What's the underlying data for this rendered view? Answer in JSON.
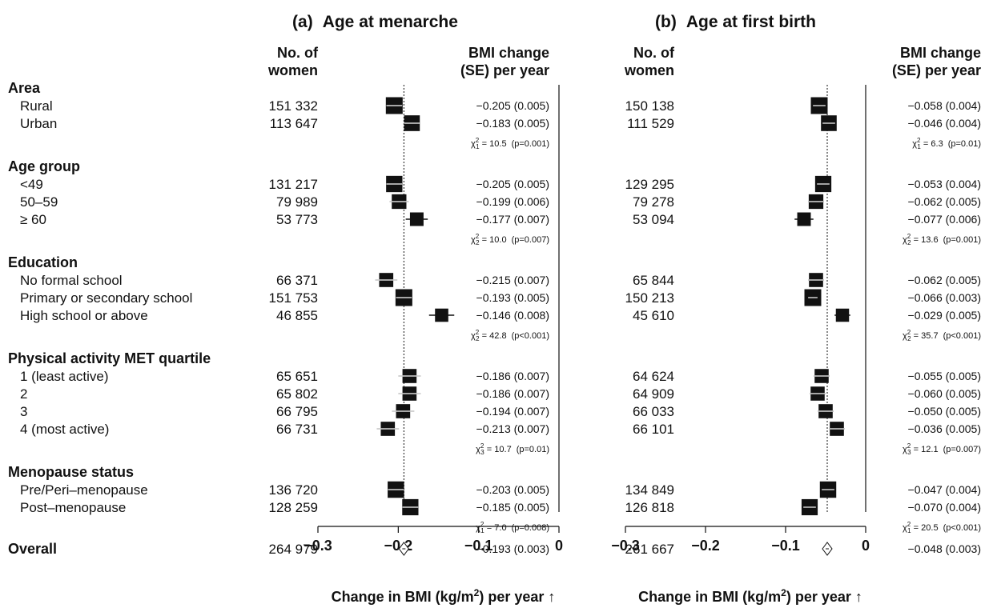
{
  "figure": {
    "panels": [
      {
        "letter": "a",
        "title": "Age at menarche",
        "n_header": [
          "No. of",
          "women"
        ],
        "est_header": [
          "BMI change",
          "(SE) per year"
        ],
        "x_label": "Change in BMI (kg/m",
        "x_label_sup": "2",
        "x_label_end": ") per year ↑"
      },
      {
        "letter": "b",
        "title": "Age at first birth",
        "n_header": [
          "No. of",
          "women"
        ],
        "est_header": [
          "BMI change",
          "(SE) per year"
        ],
        "x_label": "Change in BMI (kg/m",
        "x_label_sup": "2",
        "x_label_end": ") per year ↑"
      }
    ]
  },
  "chart_data": [
    {
      "type": "forest",
      "title": "Age at menarche",
      "xlabel": "Change in BMI (kg/m2) per year",
      "xlim": [
        -0.3,
        0
      ],
      "xticks": [
        "−0.3",
        "−0.2",
        "−0.1",
        "0"
      ],
      "reference_line": -0.193,
      "groups": [
        {
          "name": "Area",
          "rows": [
            {
              "label": "Rural",
              "n": "151 332",
              "estimate": -0.205,
              "se": 0.005,
              "text": "−0.205 (0.005)"
            },
            {
              "label": "Urban",
              "n": "113 647",
              "estimate": -0.183,
              "se": 0.005,
              "text": "−0.183 (0.005)"
            }
          ],
          "test": {
            "df": "1",
            "value": "10.5",
            "p": "(p=0.001)"
          }
        },
        {
          "name": "Age group",
          "rows": [
            {
              "label": "<49",
              "n": "131 217",
              "estimate": -0.205,
              "se": 0.005,
              "text": "−0.205 (0.005)"
            },
            {
              "label": "50–59",
              "n": "79 989",
              "estimate": -0.199,
              "se": 0.006,
              "text": "−0.199 (0.006)"
            },
            {
              "label": "≥ 60",
              "n": "53 773",
              "estimate": -0.177,
              "se": 0.007,
              "text": "−0.177 (0.007)"
            }
          ],
          "test": {
            "df": "2",
            "value": "10.0",
            "p": "(p=0.007)"
          }
        },
        {
          "name": "Education",
          "rows": [
            {
              "label": "No formal school",
              "n": "66 371",
              "estimate": -0.215,
              "se": 0.007,
              "text": "−0.215 (0.007)"
            },
            {
              "label": "Primary or secondary school",
              "n": "151 753",
              "estimate": -0.193,
              "se": 0.005,
              "text": "−0.193 (0.005)"
            },
            {
              "label": "High school or above",
              "n": "46 855",
              "estimate": -0.146,
              "se": 0.008,
              "text": "−0.146 (0.008)"
            }
          ],
          "test": {
            "df": "2",
            "value": "42.8",
            "p": "(p<0.001)"
          }
        },
        {
          "name": "Physical activity MET quartile",
          "rows": [
            {
              "label": "1 (least active)",
              "n": "65 651",
              "estimate": -0.186,
              "se": 0.007,
              "text": "−0.186 (0.007)"
            },
            {
              "label": "2",
              "n": "65 802",
              "estimate": -0.186,
              "se": 0.007,
              "text": "−0.186 (0.007)"
            },
            {
              "label": "3",
              "n": "66 795",
              "estimate": -0.194,
              "se": 0.007,
              "text": "−0.194 (0.007)"
            },
            {
              "label": "4 (most active)",
              "n": "66 731",
              "estimate": -0.213,
              "se": 0.007,
              "text": "−0.213 (0.007)"
            }
          ],
          "test": {
            "df": "3",
            "value": "10.7",
            "p": "(p=0.01)"
          }
        },
        {
          "name": "Menopause status",
          "rows": [
            {
              "label": "Pre/Peri–menopause",
              "n": "136 720",
              "estimate": -0.203,
              "se": 0.005,
              "text": "−0.203 (0.005)"
            },
            {
              "label": "Post–menopause",
              "n": "128 259",
              "estimate": -0.185,
              "se": 0.005,
              "text": "−0.185 (0.005)"
            }
          ],
          "test": {
            "df": "1",
            "value": "7.0",
            "p": "(p=0.008)"
          }
        }
      ],
      "overall": {
        "label": "Overall",
        "n": "264 979",
        "estimate": -0.193,
        "se": 0.003,
        "text": "−0.193 (0.003)"
      }
    },
    {
      "type": "forest",
      "title": "Age at first birth",
      "xlabel": "Change in BMI (kg/m2) per year",
      "xlim": [
        -0.3,
        0
      ],
      "xticks": [
        "−0.3",
        "−0.2",
        "−0.1",
        "0"
      ],
      "reference_line": -0.048,
      "groups": [
        {
          "name": "Area",
          "rows": [
            {
              "label": "Rural",
              "n": "150 138",
              "estimate": -0.058,
              "se": 0.004,
              "text": "−0.058 (0.004)"
            },
            {
              "label": "Urban",
              "n": "111 529",
              "estimate": -0.046,
              "se": 0.004,
              "text": "−0.046 (0.004)"
            }
          ],
          "test": {
            "df": "1",
            "value": "6.3",
            "p": "(p=0.01)"
          }
        },
        {
          "name": "Age group",
          "rows": [
            {
              "label": "<49",
              "n": "129 295",
              "estimate": -0.053,
              "se": 0.004,
              "text": "−0.053 (0.004)"
            },
            {
              "label": "50–59",
              "n": "79 278",
              "estimate": -0.062,
              "se": 0.005,
              "text": "−0.062 (0.005)"
            },
            {
              "label": "≥ 60",
              "n": "53 094",
              "estimate": -0.077,
              "se": 0.006,
              "text": "−0.077 (0.006)"
            }
          ],
          "test": {
            "df": "2",
            "value": "13.6",
            "p": "(p=0.001)"
          }
        },
        {
          "name": "Education",
          "rows": [
            {
              "label": "No formal school",
              "n": "65 844",
              "estimate": -0.062,
              "se": 0.005,
              "text": "−0.062 (0.005)"
            },
            {
              "label": "Primary or secondary school",
              "n": "150 213",
              "estimate": -0.066,
              "se": 0.003,
              "text": "−0.066 (0.003)"
            },
            {
              "label": "High school or above",
              "n": "45 610",
              "estimate": -0.029,
              "se": 0.005,
              "text": "−0.029 (0.005)"
            }
          ],
          "test": {
            "df": "2",
            "value": "35.7",
            "p": "(p<0.001)"
          }
        },
        {
          "name": "Physical activity MET quartile",
          "rows": [
            {
              "label": "1 (least active)",
              "n": "64 624",
              "estimate": -0.055,
              "se": 0.005,
              "text": "−0.055 (0.005)"
            },
            {
              "label": "2",
              "n": "64 909",
              "estimate": -0.06,
              "se": 0.005,
              "text": "−0.060 (0.005)"
            },
            {
              "label": "3",
              "n": "66 033",
              "estimate": -0.05,
              "se": 0.005,
              "text": "−0.050 (0.005)"
            },
            {
              "label": "4 (most active)",
              "n": "66 101",
              "estimate": -0.036,
              "se": 0.005,
              "text": "−0.036 (0.005)"
            }
          ],
          "test": {
            "df": "3",
            "value": "12.1",
            "p": "(p=0.007)"
          }
        },
        {
          "name": "Menopause status",
          "rows": [
            {
              "label": "Pre/Peri–menopause",
              "n": "134 849",
              "estimate": -0.047,
              "se": 0.004,
              "text": "−0.047 (0.004)"
            },
            {
              "label": "Post–menopause",
              "n": "126 818",
              "estimate": -0.07,
              "se": 0.004,
              "text": "−0.070 (0.004)"
            }
          ],
          "test": {
            "df": "1",
            "value": "20.5",
            "p": "(p<0.001)"
          }
        }
      ],
      "overall": {
        "label": "Overall",
        "n": "261 667",
        "estimate": -0.048,
        "se": 0.003,
        "text": "−0.048 (0.003)"
      }
    }
  ]
}
